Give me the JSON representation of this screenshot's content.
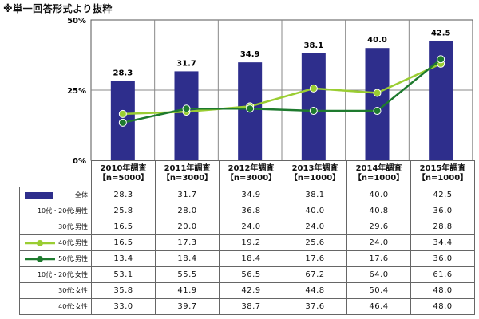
{
  "note": "※単一回答形式より抜粋",
  "chart_data": {
    "type": "bar",
    "categories": [
      "2010年調査【n=5000】",
      "2011年調査【n=3000】",
      "2012年調査【n=3000】",
      "2013年調査【n=1000】",
      "2014年調査【n=1000】",
      "2015年調査【n=1000】"
    ],
    "ylim": [
      0,
      50
    ],
    "yticks": [
      "0%",
      "25%",
      "50%"
    ],
    "series": [
      {
        "name": "全体",
        "kind": "bar",
        "color": "#2e2e8c",
        "values": [
          28.3,
          31.7,
          34.9,
          38.1,
          40.0,
          42.5
        ],
        "labels": [
          "28.3",
          "31.7",
          "34.9",
          "38.1",
          "40.0",
          "42.5"
        ]
      },
      {
        "name": "40代:男性",
        "kind": "line",
        "color": "#9acd32",
        "values": [
          16.5,
          17.3,
          19.2,
          25.6,
          24.0,
          34.4
        ]
      },
      {
        "name": "50代:男性",
        "kind": "line",
        "color": "#1e7a2e",
        "values": [
          13.4,
          18.4,
          18.4,
          17.6,
          17.6,
          36.0
        ]
      }
    ]
  },
  "table": {
    "headers": [
      {
        "year": "2010年調査",
        "n": "【n=5000】"
      },
      {
        "year": "2011年調査",
        "n": "【n=3000】"
      },
      {
        "year": "2012年調査",
        "n": "【n=3000】"
      },
      {
        "year": "2013年調査",
        "n": "【n=1000】"
      },
      {
        "year": "2014年調査",
        "n": "【n=1000】"
      },
      {
        "year": "2015年調査",
        "n": "【n=1000】"
      }
    ],
    "rows": [
      {
        "label": "全体",
        "key": "bar",
        "values": [
          "28.3",
          "31.7",
          "34.9",
          "38.1",
          "40.0",
          "42.5"
        ]
      },
      {
        "label": "10代・20代:男性",
        "key": "",
        "values": [
          "25.8",
          "28.0",
          "36.8",
          "40.0",
          "40.8",
          "36.0"
        ]
      },
      {
        "label": "30代:男性",
        "key": "",
        "values": [
          "16.5",
          "20.0",
          "24.0",
          "24.0",
          "29.6",
          "28.8"
        ]
      },
      {
        "label": "40代:男性",
        "key": "line-light",
        "values": [
          "16.5",
          "17.3",
          "19.2",
          "25.6",
          "24.0",
          "34.4"
        ]
      },
      {
        "label": "50代:男性",
        "key": "line-dark",
        "values": [
          "13.4",
          "18.4",
          "18.4",
          "17.6",
          "17.6",
          "36.0"
        ]
      },
      {
        "label": "10代・20代:女性",
        "key": "",
        "values": [
          "53.1",
          "55.5",
          "56.5",
          "67.2",
          "64.0",
          "61.6"
        ]
      },
      {
        "label": "30代:女性",
        "key": "",
        "values": [
          "35.8",
          "41.9",
          "42.9",
          "44.8",
          "50.4",
          "48.0"
        ]
      },
      {
        "label": "40代:女性",
        "key": "",
        "values": [
          "33.0",
          "39.7",
          "38.7",
          "37.6",
          "46.4",
          "48.0"
        ]
      }
    ]
  }
}
